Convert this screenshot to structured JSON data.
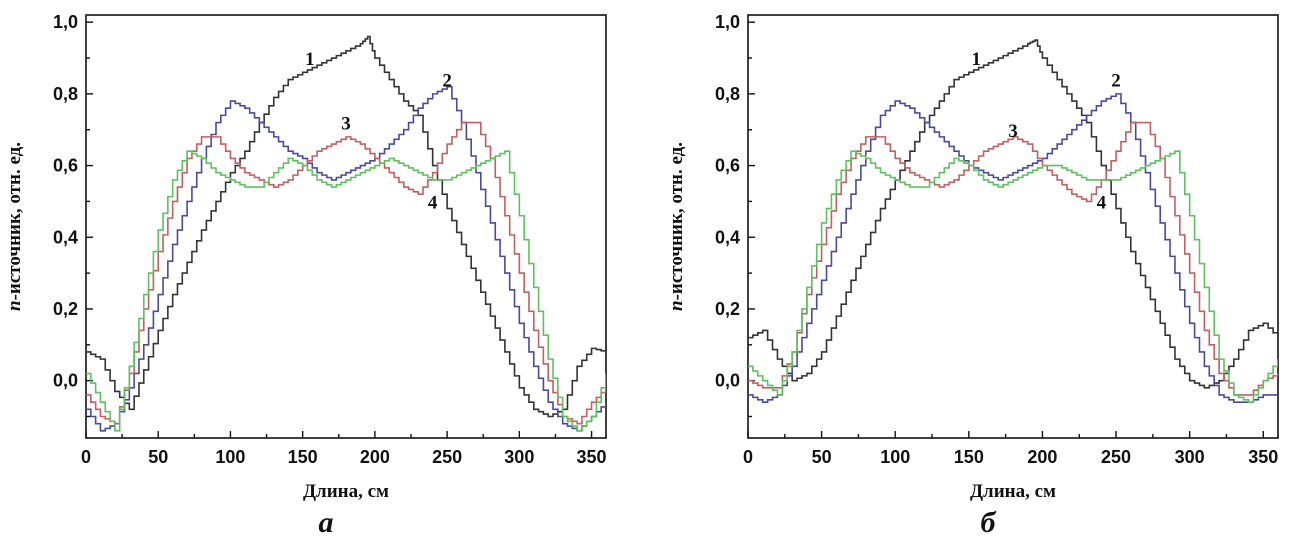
{
  "colors": {
    "series": [
      "#333333",
      "#4a4a9a",
      "#c06060",
      "#60c060"
    ],
    "axis": "#111111"
  },
  "chart_data": [
    {
      "type": "line",
      "panel_label": "а",
      "xlabel": "Длина, см",
      "ylabel": "n-источник, отн. ед.",
      "xlim": [
        0,
        360
      ],
      "ylim": [
        -0.16,
        1.02
      ],
      "xticks": [
        0,
        50,
        100,
        150,
        200,
        250,
        300,
        350
      ],
      "xtick_labels": [
        "0",
        "50",
        "100",
        "150",
        "200",
        "250",
        "300",
        "350"
      ],
      "yticks": [
        0.0,
        0.2,
        0.4,
        0.6,
        0.8,
        1.0
      ],
      "ytick_labels": [
        "0,0",
        "0,2",
        "0,4",
        "0,6",
        "0,8",
        "1,0"
      ],
      "step": true,
      "series": [
        {
          "name": "1",
          "x": [
            0,
            10,
            20,
            30,
            40,
            50,
            60,
            70,
            80,
            90,
            100,
            110,
            120,
            130,
            140,
            150,
            160,
            170,
            180,
            190,
            195,
            200,
            210,
            220,
            230,
            240,
            250,
            260,
            270,
            280,
            290,
            300,
            310,
            320,
            330,
            340,
            350,
            360
          ],
          "values": [
            0.08,
            0.06,
            -0.03,
            -0.08,
            0.03,
            0.14,
            0.24,
            0.33,
            0.42,
            0.5,
            0.58,
            0.64,
            0.72,
            0.79,
            0.84,
            0.86,
            0.88,
            0.9,
            0.92,
            0.94,
            0.96,
            0.9,
            0.84,
            0.78,
            0.74,
            0.6,
            0.48,
            0.38,
            0.28,
            0.18,
            0.08,
            -0.02,
            -0.08,
            -0.1,
            -0.08,
            0.04,
            0.09,
            0.08
          ]
        },
        {
          "name": "2",
          "x": [
            0,
            10,
            20,
            30,
            40,
            50,
            60,
            70,
            80,
            90,
            100,
            110,
            120,
            130,
            140,
            150,
            160,
            170,
            180,
            190,
            200,
            210,
            220,
            230,
            240,
            250,
            260,
            270,
            280,
            290,
            300,
            310,
            320,
            330,
            340,
            350,
            360
          ],
          "values": [
            -0.08,
            -0.14,
            -0.12,
            -0.02,
            0.1,
            0.24,
            0.38,
            0.5,
            0.62,
            0.72,
            0.78,
            0.76,
            0.72,
            0.68,
            0.64,
            0.62,
            0.58,
            0.56,
            0.58,
            0.6,
            0.62,
            0.66,
            0.7,
            0.76,
            0.8,
            0.82,
            0.72,
            0.58,
            0.44,
            0.3,
            0.16,
            0.04,
            -0.06,
            -0.12,
            -0.14,
            -0.1,
            -0.06
          ]
        },
        {
          "name": "3",
          "x": [
            0,
            10,
            20,
            30,
            40,
            50,
            60,
            70,
            80,
            90,
            100,
            110,
            120,
            130,
            140,
            150,
            160,
            170,
            180,
            190,
            200,
            210,
            220,
            230,
            240,
            250,
            260,
            270,
            280,
            290,
            300,
            310,
            320,
            330,
            340,
            350,
            360
          ],
          "values": [
            -0.04,
            -0.1,
            -0.12,
            0.02,
            0.2,
            0.36,
            0.5,
            0.62,
            0.68,
            0.68,
            0.62,
            0.58,
            0.56,
            0.54,
            0.56,
            0.6,
            0.64,
            0.66,
            0.68,
            0.66,
            0.62,
            0.58,
            0.54,
            0.52,
            0.58,
            0.66,
            0.72,
            0.72,
            0.62,
            0.46,
            0.3,
            0.14,
            0.0,
            -0.1,
            -0.12,
            -0.06,
            -0.02
          ]
        },
        {
          "name": "4",
          "x": [
            0,
            10,
            20,
            30,
            40,
            50,
            60,
            70,
            80,
            90,
            100,
            110,
            120,
            130,
            140,
            150,
            160,
            170,
            180,
            190,
            200,
            210,
            220,
            230,
            240,
            250,
            260,
            270,
            280,
            290,
            300,
            310,
            320,
            330,
            340,
            350,
            360
          ],
          "values": [
            0.02,
            -0.06,
            -0.14,
            0.04,
            0.24,
            0.42,
            0.56,
            0.64,
            0.62,
            0.58,
            0.56,
            0.54,
            0.54,
            0.58,
            0.62,
            0.6,
            0.56,
            0.54,
            0.56,
            0.58,
            0.6,
            0.62,
            0.6,
            0.58,
            0.56,
            0.56,
            0.58,
            0.6,
            0.62,
            0.64,
            0.46,
            0.26,
            0.06,
            -0.1,
            -0.14,
            -0.1,
            0.02
          ]
        }
      ],
      "curve_labels": [
        {
          "text": "1",
          "x": 155,
          "y": 0.88
        },
        {
          "text": "2",
          "x": 250,
          "y": 0.82
        },
        {
          "text": "3",
          "x": 180,
          "y": 0.7
        },
        {
          "text": "4",
          "x": 240,
          "y": 0.48
        }
      ]
    },
    {
      "type": "line",
      "panel_label": "б",
      "xlabel": "Длина, см",
      "ylabel": "n-источник, отн. ед.",
      "xlim": [
        0,
        360
      ],
      "ylim": [
        -0.16,
        1.02
      ],
      "xticks": [
        0,
        50,
        100,
        150,
        200,
        250,
        300,
        350
      ],
      "xtick_labels": [
        "0",
        "50",
        "100",
        "150",
        "200",
        "250",
        "300",
        "350"
      ],
      "yticks": [
        0.0,
        0.2,
        0.4,
        0.6,
        0.8,
        1.0
      ],
      "ytick_labels": [
        "0,0",
        "0,2",
        "0,4",
        "0,6",
        "0,8",
        "1,0"
      ],
      "step": true,
      "series": [
        {
          "name": "1",
          "x": [
            0,
            10,
            20,
            30,
            40,
            50,
            60,
            70,
            80,
            90,
            100,
            110,
            120,
            130,
            140,
            150,
            160,
            170,
            180,
            190,
            195,
            200,
            210,
            220,
            230,
            240,
            250,
            260,
            270,
            280,
            290,
            300,
            310,
            320,
            330,
            340,
            350,
            360
          ],
          "values": [
            0.12,
            0.14,
            0.06,
            0.0,
            0.02,
            0.08,
            0.18,
            0.28,
            0.38,
            0.48,
            0.56,
            0.64,
            0.72,
            0.78,
            0.84,
            0.86,
            0.88,
            0.9,
            0.92,
            0.94,
            0.95,
            0.9,
            0.84,
            0.78,
            0.72,
            0.6,
            0.48,
            0.36,
            0.26,
            0.16,
            0.06,
            0.0,
            -0.02,
            0.0,
            0.06,
            0.14,
            0.16,
            0.12
          ]
        },
        {
          "name": "2",
          "x": [
            0,
            10,
            20,
            30,
            40,
            50,
            60,
            70,
            80,
            90,
            100,
            110,
            120,
            130,
            140,
            150,
            160,
            170,
            180,
            190,
            200,
            210,
            220,
            230,
            240,
            250,
            260,
            270,
            280,
            290,
            300,
            310,
            320,
            330,
            340,
            350,
            360
          ],
          "values": [
            -0.04,
            -0.06,
            -0.04,
            0.04,
            0.16,
            0.28,
            0.4,
            0.52,
            0.64,
            0.74,
            0.78,
            0.76,
            0.72,
            0.68,
            0.64,
            0.6,
            0.58,
            0.56,
            0.58,
            0.6,
            0.62,
            0.66,
            0.7,
            0.74,
            0.78,
            0.8,
            0.72,
            0.58,
            0.44,
            0.3,
            0.16,
            0.04,
            -0.04,
            -0.06,
            -0.06,
            -0.04,
            -0.04
          ]
        },
        {
          "name": "3",
          "x": [
            0,
            10,
            20,
            30,
            40,
            50,
            60,
            70,
            80,
            90,
            100,
            110,
            120,
            130,
            140,
            150,
            160,
            170,
            180,
            190,
            200,
            210,
            220,
            230,
            240,
            250,
            260,
            270,
            280,
            290,
            300,
            310,
            320,
            330,
            340,
            350,
            360
          ],
          "values": [
            0.0,
            -0.02,
            -0.02,
            0.08,
            0.24,
            0.38,
            0.52,
            0.62,
            0.68,
            0.68,
            0.62,
            0.58,
            0.56,
            0.54,
            0.56,
            0.6,
            0.64,
            0.66,
            0.68,
            0.66,
            0.6,
            0.56,
            0.52,
            0.5,
            0.56,
            0.64,
            0.72,
            0.72,
            0.62,
            0.46,
            0.3,
            0.14,
            0.02,
            -0.04,
            -0.04,
            0.0,
            0.02
          ]
        },
        {
          "name": "4",
          "x": [
            0,
            10,
            20,
            30,
            40,
            50,
            60,
            70,
            80,
            90,
            100,
            110,
            120,
            130,
            140,
            150,
            160,
            170,
            180,
            190,
            200,
            210,
            220,
            230,
            240,
            250,
            260,
            270,
            280,
            290,
            300,
            310,
            320,
            330,
            340,
            350,
            360
          ],
          "values": [
            0.04,
            0.0,
            -0.04,
            0.08,
            0.26,
            0.44,
            0.56,
            0.64,
            0.62,
            0.58,
            0.56,
            0.54,
            0.54,
            0.58,
            0.62,
            0.6,
            0.56,
            0.54,
            0.56,
            0.58,
            0.6,
            0.6,
            0.58,
            0.56,
            0.56,
            0.56,
            0.58,
            0.6,
            0.62,
            0.64,
            0.46,
            0.26,
            0.06,
            -0.04,
            -0.06,
            0.0,
            0.06
          ]
        }
      ],
      "curve_labels": [
        {
          "text": "1",
          "x": 155,
          "y": 0.88
        },
        {
          "text": "2",
          "x": 250,
          "y": 0.82
        },
        {
          "text": "3",
          "x": 180,
          "y": 0.68
        },
        {
          "text": "4",
          "x": 240,
          "y": 0.48
        }
      ]
    }
  ]
}
